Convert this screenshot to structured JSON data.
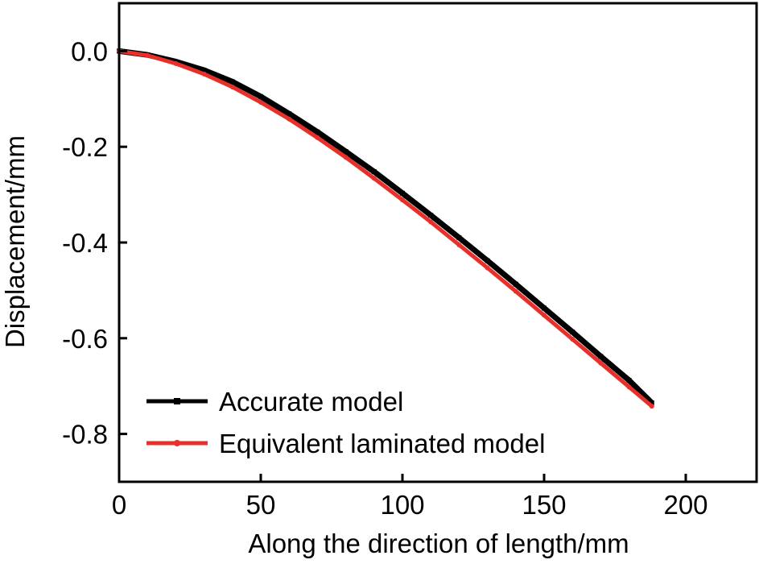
{
  "chart_data": {
    "type": "line",
    "title": "",
    "xlabel": "Along the direction of length/mm",
    "ylabel": "Displacement/mm",
    "xlim": [
      0,
      225
    ],
    "ylim": [
      -0.9,
      0.1
    ],
    "xticks": [
      0,
      50,
      100,
      150,
      200
    ],
    "xtick_labels": [
      "0",
      "50",
      "100",
      "150",
      "200"
    ],
    "yticks": [
      0.0,
      -0.2,
      -0.4,
      -0.6,
      -0.8
    ],
    "ytick_labels": [
      "0.0",
      "-0.2",
      "-0.4",
      "-0.6",
      "-0.8"
    ],
    "grid": false,
    "legend_position": "bottom-left",
    "series": [
      {
        "name": "Accurate model",
        "color": "#000000",
        "marker": "square",
        "x": [
          0,
          10,
          20,
          30,
          40,
          50,
          60,
          70,
          80,
          90,
          100,
          110,
          120,
          130,
          140,
          150,
          160,
          170,
          180,
          188
        ],
        "y": [
          0.0,
          -0.008,
          -0.022,
          -0.04,
          -0.064,
          -0.095,
          -0.131,
          -0.169,
          -0.21,
          -0.252,
          -0.297,
          -0.343,
          -0.39,
          -0.438,
          -0.487,
          -0.537,
          -0.587,
          -0.638,
          -0.688,
          -0.735
        ]
      },
      {
        "name": "Equivalent laminated model",
        "color": "#e8302a",
        "marker": "circle",
        "x": [
          0,
          10,
          20,
          30,
          40,
          50,
          60,
          70,
          80,
          90,
          100,
          110,
          120,
          130,
          140,
          150,
          160,
          170,
          180,
          188
        ],
        "y": [
          0.0,
          -0.009,
          -0.026,
          -0.048,
          -0.075,
          -0.107,
          -0.142,
          -0.181,
          -0.222,
          -0.266,
          -0.311,
          -0.357,
          -0.405,
          -0.453,
          -0.502,
          -0.552,
          -0.602,
          -0.652,
          -0.702,
          -0.742
        ]
      }
    ]
  }
}
